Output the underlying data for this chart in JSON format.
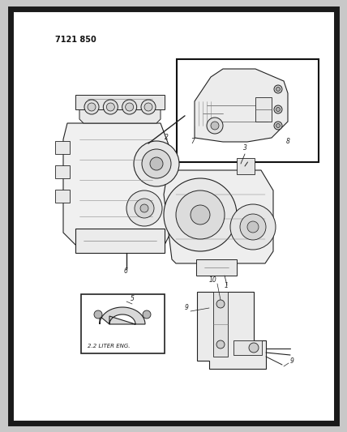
{
  "background_color": "#ffffff",
  "border_color": "#1a1a1a",
  "page_bg": "#c8c8c8",
  "part_number": "7121 850",
  "label_2_2_liter": "2.2 LITER ENG.",
  "fig_width": 4.28,
  "fig_height": 5.33,
  "dpi": 100,
  "line_color": "#222222",
  "fill_light": "#f0f0f0",
  "fill_mid": "#d8d8d8",
  "fill_dark": "#b0b0b0"
}
